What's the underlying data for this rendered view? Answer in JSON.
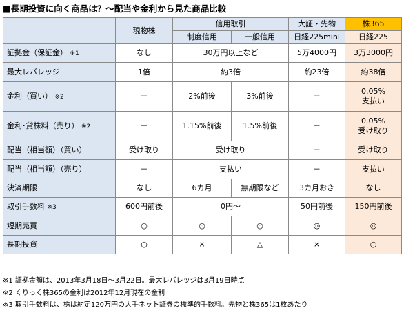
{
  "title": "■長期投資に向く商品は？～配当や金利から見た商品比較",
  "header": {
    "genbutsu": "現物株",
    "shinyo": "信用取引",
    "seido": "制度信用",
    "ippan": "一般信用",
    "daisho": "大証・先物",
    "daisho_sub": "日経225mini",
    "kabu365": "株365",
    "kabu365_sub": "日経225"
  },
  "rows": {
    "r1": {
      "label": "証拠金（保証金）",
      "note": "※1",
      "genbutsu": "なし",
      "shinyo": "30万円以上など",
      "daisho": "5万4000円",
      "kabu365": "3万3000円"
    },
    "r2": {
      "label": "最大レバレッジ",
      "genbutsu": "1倍",
      "shinyo": "約3倍",
      "daisho": "約23倍",
      "kabu365": "約38倍"
    },
    "r3": {
      "label": "金利（買い）",
      "note": "※2",
      "genbutsu": "－",
      "seido": "2%前後",
      "ippan": "3%前後",
      "daisho": "－",
      "kabu365_1": "0.05%",
      "kabu365_2": "支払い"
    },
    "r4": {
      "label": "金利･貸株料（売り）",
      "note": "※2",
      "genbutsu": "－",
      "seido": "1.15%前後",
      "ippan": "1.5%前後",
      "daisho": "－",
      "kabu365_1": "0.05%",
      "kabu365_2": "受け取り"
    },
    "r5": {
      "label": "配当（相当額）（買い）",
      "genbutsu": "受け取り",
      "shinyo": "受け取り",
      "daisho": "－",
      "kabu365": "受け取り"
    },
    "r6": {
      "label": "配当（相当額）（売り）",
      "genbutsu": "－",
      "shinyo": "支払い",
      "daisho": "－",
      "kabu365": "支払い"
    },
    "r7": {
      "label": "決済期限",
      "genbutsu": "なし",
      "seido": "6カ月",
      "ippan": "無期限など",
      "daisho": "3カ月おき",
      "kabu365": "なし"
    },
    "r8": {
      "label": "取引手数料",
      "note": "※3",
      "genbutsu": "600円前後",
      "shinyo": "0円～",
      "daisho": "50円前後",
      "kabu365": "150円前後"
    },
    "r9": {
      "label": "短期売買",
      "genbutsu": "○",
      "seido": "◎",
      "ippan": "◎",
      "daisho": "◎",
      "kabu365": "◎"
    },
    "r10": {
      "label": "長期投資",
      "genbutsu": "○",
      "seido": "×",
      "ippan": "△",
      "daisho": "×",
      "kabu365": "○"
    }
  },
  "notes": [
    "※1 証拠金額は、2013年3月18日～3月22日。最大レバレッジは3月19日時点",
    "※2 くりっく株365の金利は2012年12月現在の金利",
    "※3 取引手数料は、株は約定120万円の大手ネット証券の標準的手数料。先物と株365は1枚あたり"
  ]
}
